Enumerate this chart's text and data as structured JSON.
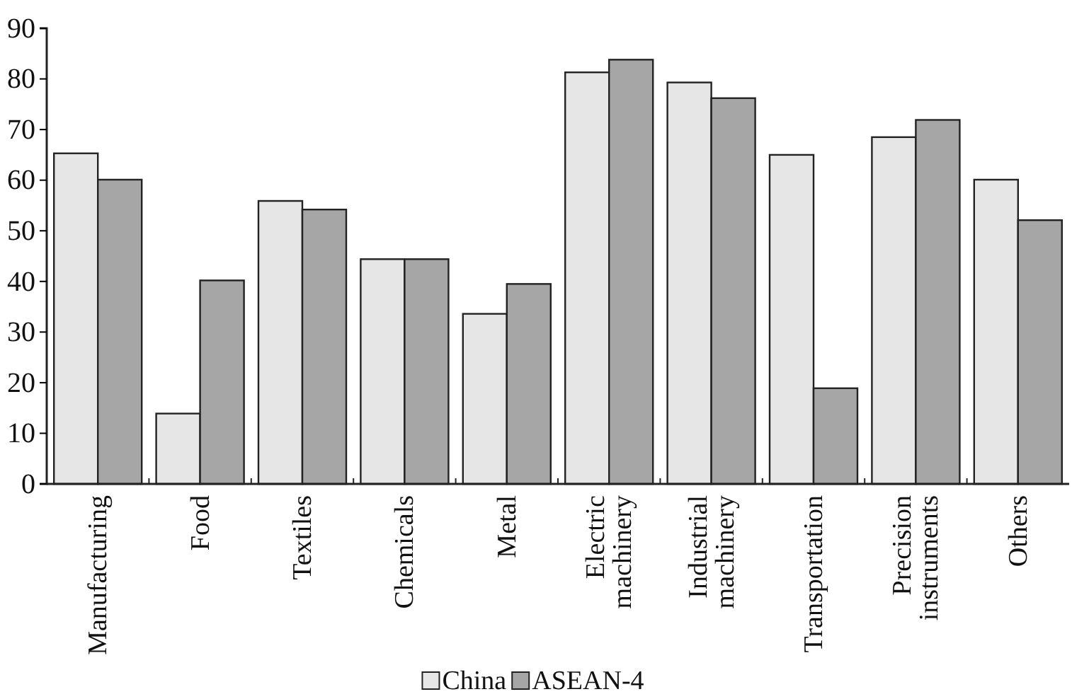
{
  "chart_data": {
    "type": "bar",
    "categories": [
      "Manufacturing",
      "Food",
      "Textiles",
      "Chemicals",
      "Metal",
      "Electric machinery",
      "Industrial machinery",
      "Transportation",
      "Precision instruments",
      "Others"
    ],
    "series": [
      {
        "name": "China",
        "color": "#e6e6e6",
        "values": [
          65.3,
          13.9,
          55.9,
          44.4,
          33.6,
          81.3,
          79.3,
          65.0,
          68.5,
          60.1
        ]
      },
      {
        "name": "ASEAN-4",
        "color": "#a6a6a6",
        "values": [
          60.1,
          40.2,
          54.2,
          44.4,
          39.5,
          83.8,
          76.2,
          18.9,
          71.9,
          52.1
        ]
      }
    ],
    "ylim": [
      0,
      90
    ],
    "yticks": [
      0,
      10,
      20,
      30,
      40,
      50,
      60,
      70,
      80,
      90
    ],
    "legend": "bottom",
    "grid": false
  }
}
